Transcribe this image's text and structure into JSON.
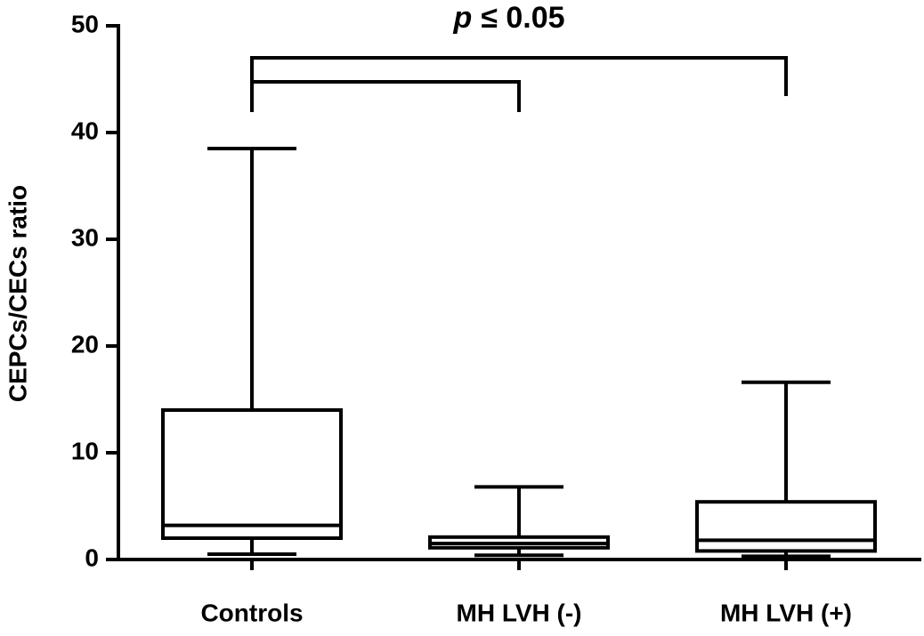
{
  "chart_data": {
    "type": "box",
    "annotation_parts": [
      "p",
      "≤ 0.05"
    ],
    "y_label": "CEPCs/CECs ratio",
    "categories": [
      "Controls",
      "MH LVH (-)",
      "MH LVH (+)"
    ],
    "min": [
      0.5,
      0.4,
      0.3
    ],
    "q1": [
      2.0,
      1.1,
      0.8
    ],
    "median": [
      3.2,
      1.5,
      1.8
    ],
    "q3": [
      14.0,
      2.1,
      5.4
    ],
    "max": [
      38.5,
      6.8,
      16.6
    ],
    "color": "#000000",
    "ylim": [
      0,
      50
    ],
    "yticks": [
      0,
      10,
      20,
      30,
      40,
      50
    ]
  }
}
